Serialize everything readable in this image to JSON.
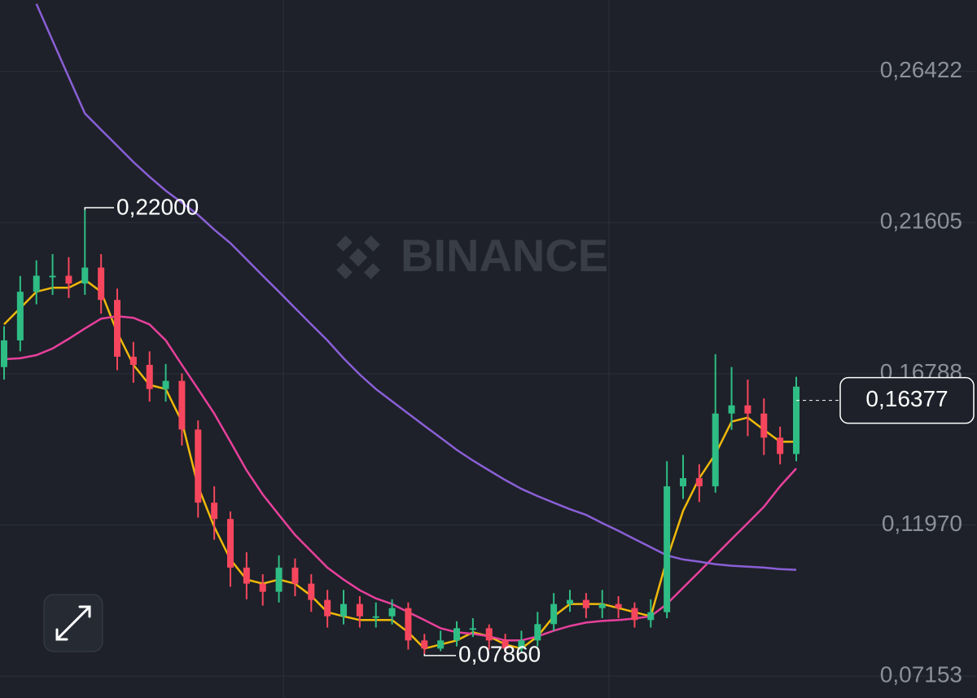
{
  "chart_data": {
    "type": "candlestick",
    "watermark": "BINANCE",
    "open": [
      0.17,
      0.1785,
      0.194,
      0.1991,
      0.1991,
      0.1966,
      0.2017,
      0.1914,
      0.1733,
      0.1707,
      0.163,
      0.1656,
      0.1501,
      0.1268,
      0.1216,
      0.1061,
      0.101,
      0.0984,
      0.1061,
      0.101,
      0.0958,
      0.0906,
      0.0945,
      0.0906,
      0.0906,
      0.0932,
      0.0829,
      0.0803,
      0.0829,
      0.0868,
      0.0868,
      0.0829,
      0.0803,
      0.0829,
      0.0881,
      0.0945,
      0.0958,
      0.0932,
      0.0945,
      0.0932,
      0.0894,
      0.0919,
      0.132,
      0.1346,
      0.132,
      0.1552,
      0.1578,
      0.1552,
      0.1475,
      0.1423
    ],
    "high": [
      0.183,
      0.199,
      0.204,
      0.206,
      0.205,
      0.22,
      0.206,
      0.195,
      0.178,
      0.175,
      0.171,
      0.168,
      0.153,
      0.132,
      0.124,
      0.111,
      0.104,
      0.11,
      0.109,
      0.104,
      0.099,
      0.099,
      0.097,
      0.095,
      0.096,
      0.095,
      0.085,
      0.086,
      0.089,
      0.09,
      0.088,
      0.085,
      0.086,
      0.092,
      0.098,
      0.099,
      0.098,
      0.099,
      0.097,
      0.095,
      0.096,
      0.14,
      0.142,
      0.139,
      0.1741,
      0.17,
      0.166,
      0.16,
      0.151,
      0.1669
    ],
    "low": [
      0.166,
      0.175,
      0.19,
      0.193,
      0.192,
      0.193,
      0.187,
      0.169,
      0.165,
      0.159,
      0.159,
      0.145,
      0.122,
      0.115,
      0.1,
      0.096,
      0.094,
      0.095,
      0.097,
      0.092,
      0.087,
      0.088,
      0.087,
      0.087,
      0.088,
      0.08,
      0.0786,
      0.0795,
      0.081,
      0.084,
      0.08,
      0.079,
      0.079,
      0.081,
      0.086,
      0.092,
      0.09,
      0.09,
      0.09,
      0.087,
      0.087,
      0.09,
      0.128,
      0.127,
      0.13,
      0.15,
      0.148,
      0.142,
      0.139,
      0.14
    ],
    "close": [
      0.1785,
      0.194,
      0.1991,
      0.1991,
      0.1966,
      0.2017,
      0.1914,
      0.1733,
      0.1707,
      0.163,
      0.1656,
      0.1501,
      0.1268,
      0.1216,
      0.1061,
      0.101,
      0.0984,
      0.1061,
      0.101,
      0.0958,
      0.0906,
      0.0945,
      0.0906,
      0.0906,
      0.0932,
      0.0829,
      0.0803,
      0.0829,
      0.0868,
      0.0868,
      0.0829,
      0.0803,
      0.0829,
      0.0881,
      0.0945,
      0.0958,
      0.0932,
      0.0945,
      0.0932,
      0.0894,
      0.0919,
      0.132,
      0.1346,
      0.132,
      0.1552,
      0.1578,
      0.1552,
      0.1475,
      0.1423,
      0.16377
    ],
    "up_color": "#2ebd85",
    "down_color": "#f6465d",
    "series": [
      {
        "color": "#f0b90b",
        "values": [
          0.1836,
          0.1888,
          0.194,
          0.1953,
          0.1953,
          0.1978,
          0.194,
          0.181,
          0.1707,
          0.1643,
          0.163,
          0.1526,
          0.132,
          0.1191,
          0.1087,
          0.1023,
          0.101,
          0.1023,
          0.101,
          0.0971,
          0.0919,
          0.0906,
          0.0894,
          0.0894,
          0.0894,
          0.0855,
          0.0803,
          0.0816,
          0.0829,
          0.0855,
          0.0842,
          0.0816,
          0.0803,
          0.0842,
          0.0906,
          0.0945,
          0.0945,
          0.0945,
          0.0932,
          0.0919,
          0.0906,
          0.1087,
          0.1242,
          0.1346,
          0.1423,
          0.1526,
          0.1539,
          0.15,
          0.1462,
          0.1462
        ]
      },
      {
        "color": "#e8409c",
        "values": [
          0.1725,
          0.1728,
          0.1738,
          0.1759,
          0.179,
          0.1823,
          0.1854,
          0.1862,
          0.1857,
          0.1836,
          0.1785,
          0.1707,
          0.163,
          0.1552,
          0.1462,
          0.1371,
          0.1294,
          0.1229,
          0.1165,
          0.1113,
          0.1061,
          0.1023,
          0.0989,
          0.0963,
          0.0945,
          0.0919,
          0.0894,
          0.0868,
          0.0855,
          0.085,
          0.0842,
          0.0829,
          0.0829,
          0.0842,
          0.086,
          0.0875,
          0.0886,
          0.0891,
          0.0894,
          0.0899,
          0.0906,
          0.0945,
          0.0997,
          0.1048,
          0.11,
          0.1152,
          0.1203,
          0.1255,
          0.132,
          0.1377
        ]
      },
      {
        "color": "#8a5fd6",
        "values": [
          null,
          null,
          0.2857,
          0.274,
          0.2624,
          0.2508,
          0.2456,
          0.2405,
          0.2353,
          0.2306,
          0.2262,
          0.2224,
          0.2185,
          0.2138,
          0.2095,
          0.2043,
          0.1991,
          0.194,
          0.1888,
          0.1836,
          0.1785,
          0.1728,
          0.1676,
          0.163,
          0.1591,
          0.1552,
          0.1513,
          0.1475,
          0.1436,
          0.1402,
          0.1371,
          0.134,
          0.1312,
          0.1289,
          0.1268,
          0.1247,
          0.1229,
          0.1203,
          0.1178,
          0.1152,
          0.1126,
          0.11,
          0.1087,
          0.108,
          0.1072,
          0.1067,
          0.1064,
          0.1061,
          0.1056,
          0.1054
        ]
      }
    ],
    "ylim": [
      0.06456,
      0.28695
    ],
    "yticks": [
      {
        "value": 0.26422,
        "label": "0,26422"
      },
      {
        "value": 0.21605,
        "label": "0,21605"
      },
      {
        "value": 0.16788,
        "label": "0,16788"
      },
      {
        "value": 0.1197,
        "label": "0,11970"
      },
      {
        "value": 0.07153,
        "label": "0,07153"
      }
    ],
    "grid": true,
    "high_marker": {
      "value": 0.22,
      "label": "0,22000"
    },
    "low_marker": {
      "value": 0.0786,
      "label": "0,07860"
    },
    "last_price": {
      "value": 0.16377,
      "label": "0,16377"
    }
  }
}
